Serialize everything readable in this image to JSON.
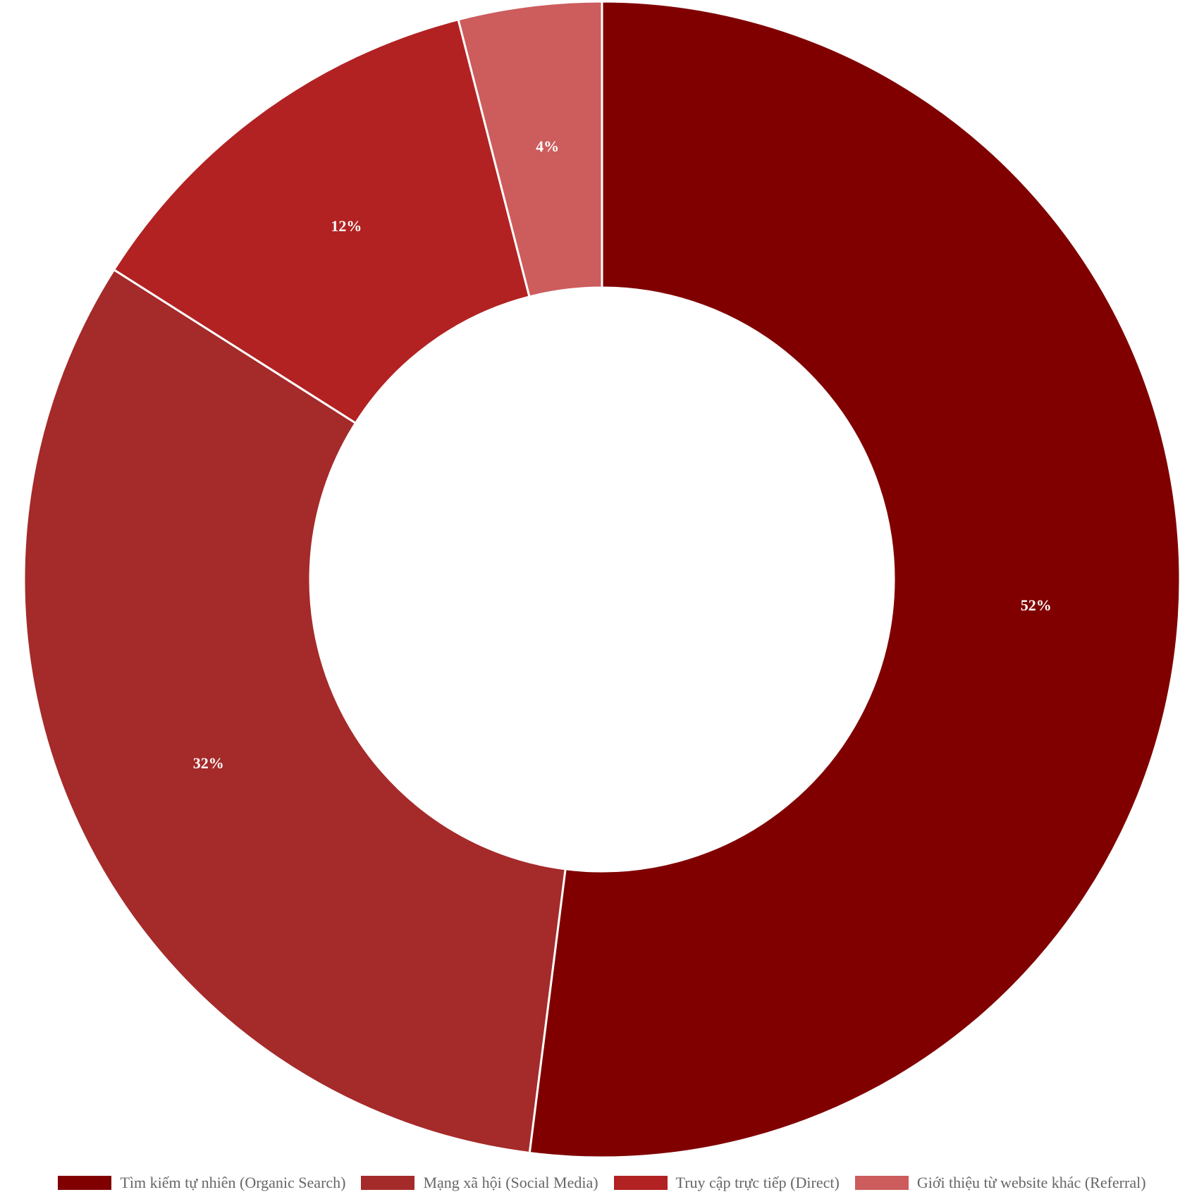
{
  "chart_data": {
    "type": "doughnut",
    "title": "",
    "slices": [
      {
        "name": "Tìm kiếm tự nhiên (Organic Search)",
        "value": 52,
        "label": "52%",
        "color": "#800000"
      },
      {
        "name": "Mạng xã hội (Social Media)",
        "value": 32,
        "label": "32%",
        "color": "#A52A2A"
      },
      {
        "name": "Truy cập trực tiếp (Direct)",
        "value": 12,
        "label": "12%",
        "color": "#B22222"
      },
      {
        "name": "Giới thiệu từ website khác (Referral)",
        "value": 4,
        "label": "4%",
        "color": "#CD5C5C"
      }
    ],
    "legend_position": "bottom",
    "start_angle": "top",
    "direction": "clockwise"
  }
}
